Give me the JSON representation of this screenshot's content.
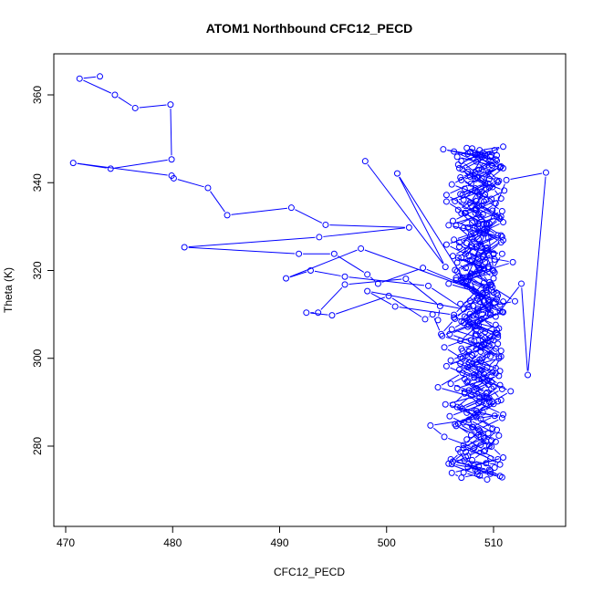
{
  "chart_data": {
    "type": "line",
    "title": "ATOM1 Northbound CFC12_PECD",
    "xlabel": "CFC12_PECD",
    "ylabel": "Theta (K)",
    "xlim": [
      468.5,
      816.5
    ],
    "ylim": [
      267.5,
      370.0
    ],
    "xticks": [
      470,
      480,
      490,
      500,
      510
    ],
    "yticks": [
      280,
      300,
      320,
      340,
      360
    ],
    "xtick_labels": [
      "470",
      "480",
      "490",
      "500",
      "510"
    ],
    "ytick_labels": [
      "280",
      "300",
      "320",
      "340",
      "360"
    ],
    "grid": false,
    "legend": "none",
    "series": [
      {
        "color": "#0000ff",
        "marker": "open-circle",
        "line": "solid",
        "x": [
          473.2,
          471.3,
          474.6,
          476.5,
          479.8,
          479.9,
          474.2,
          470.7,
          479.9,
          480.1,
          483.3,
          485.1,
          491.1,
          494.3,
          502.1,
          493.7,
          481.1,
          491.8,
          495.1,
          498.2,
          499.2,
          503.4,
          509.0,
          497.6,
          490.6,
          492.9,
          496.1,
          503.9,
          507.2,
          498.2,
          500.8,
          506.3,
          509.1,
          508.0,
          508.8,
          510.0,
          509.4,
          508.3,
          509.8,
          508.7,
          510.9,
          509.2,
          507.8,
          509.6,
          508.4,
          510.3,
          507.6,
          509.5,
          507.4,
          511.8,
          507.1,
          509.9,
          512.0,
          508.5,
          507.2,
          509.2,
          508.2,
          510.7,
          509.7,
          508.0,
          510.5,
          506.6,
          508.7,
          509.9,
          511.6,
          508.9,
          507.6,
          510.2,
          508.4,
          507.3,
          510.9,
          508.4,
          507.8,
          509.9,
          510.8,
          506.8,
          507.9,
          509.6,
          508.3,
          506.4,
          509.3,
          508.9,
          510.6,
          507.6,
          510.2,
          508.9,
          510.4,
          509.2,
          508.0,
          510.6,
          509.4,
          506.8,
          509.1,
          508.7,
          507.7,
          509.8,
          508.7,
          509.7,
          507.8,
          510.3,
          509.1,
          508.0,
          507.3,
          509.0,
          510.8,
          508.7,
          507.1,
          509.4,
          510.0,
          508.2,
          506.9,
          507.7,
          509.5,
          510.3,
          508.9,
          507.7,
          508.6,
          509.8,
          507.9,
          506.6,
          509.3,
          510.9,
          508.2,
          508.8,
          507.4,
          505.6,
          507.9,
          509.5,
          508.4,
          506.3,
          509.7,
          510.6,
          507.0,
          508.9,
          510.2,
          508.6,
          506.5,
          507.8,
          509.3,
          510.1,
          508.7,
          507.1,
          509.0,
          510.6,
          508.1,
          507.6,
          509.2,
          508.4,
          506.0,
          508.8,
          509.8,
          507.3,
          506.2,
          508.4,
          509.9,
          507.5,
          509.2,
          508.0,
          510.1,
          508.5,
          507.0,
          506.1,
          508.6,
          509.7,
          507.2,
          508.8,
          506.5,
          508.3,
          510.0,
          509.4,
          507.6,
          508.9,
          507.1,
          505.4,
          508.3,
          510.2,
          507.8,
          509.6,
          508.2,
          507.0,
          509.5,
          506.7,
          508.0,
          510.4,
          508.6,
          507.4,
          509.1,
          511.0,
          508.3,
          506.8,
          508.9,
          507.5,
          509.8,
          510.7,
          508.5,
          507.3,
          509.3,
          510.8,
          508.0,
          509.1,
          507.9,
          506.2,
          508.7,
          510.0,
          509.3,
          507.8,
          510.9,
          508.1,
          510.4,
          509.6,
          506.9,
          510.2,
          508.6,
          507.7,
          509.6,
          508.5,
          506.4,
          507.9,
          509.8,
          510.9,
          508.2,
          507.2,
          509.4,
          508.7,
          505.8,
          506.9,
          509.3,
          510.3,
          508.8,
          506.9,
          509.3,
          510.6,
          509.1,
          507.7,
          508.8,
          510.0,
          508.4,
          507.5,
          509.0,
          510.4,
          509.7,
          508.9,
          509.2,
          507.6,
          506.3,
          509.4,
          510.5,
          508.6,
          507.1,
          509.5,
          508.3,
          507.0,
          510.1,
          509.0,
          506.7,
          508.2,
          509.9,
          510.7,
          508.4,
          506.2,
          509.2,
          507.5,
          510.0,
          508.6,
          507.8,
          509.3,
          510.3,
          508.5,
          507.0,
          510.2,
          509.1,
          508.0,
          505.6,
          508.2,
          509.8,
          510.7,
          508.4,
          507.2,
          509.5,
          508.8,
          507.6,
          506.1,
          509.7,
          510.6,
          508.3,
          507.4,
          509.6,
          508.6,
          506.7,
          509.0,
          510.4,
          508.2,
          507.3,
          509.4,
          510.5,
          508.9,
          505.9,
          508.5,
          510.8,
          509.1,
          508.0,
          506.5,
          509.5,
          507.7,
          505.6,
          508.7,
          510.9,
          509.9,
          507.2,
          508.3,
          506.9,
          509.9,
          508.3,
          505.3,
          510.3,
          507.6,
          509.2,
          506.9,
          508.9,
          510.7,
          507.2,
          508.6,
          509.4,
          507.8,
          510.1,
          505.8,
          509.4,
          508.1,
          506.3,
          510.5,
          509.0,
          507.1,
          508.4,
          510.2,
          509.5,
          507.9,
          506.6,
          510.8,
          508.6,
          509.8,
          507.4,
          506.2,
          509.6,
          510.8,
          508.5,
          507.3,
          506.7,
          509.1,
          508.0,
          510.1,
          505.5,
          509.3,
          507.5,
          510.6,
          508.7,
          507.0,
          510.4,
          508.3,
          509.7,
          506.9,
          510.0,
          507.6,
          506.4,
          508.6,
          509.4,
          510.8,
          505.8,
          509.0,
          507.8,
          508.5,
          510.3,
          507.1,
          509.2,
          508.0,
          506.6,
          510.9,
          509.6,
          508.3,
          505.6,
          507.3,
          509.0,
          510.7,
          508.4,
          507.0,
          509.1,
          506.5,
          508.2,
          510.1,
          509.5,
          507.7,
          505.2,
          508.8,
          510.5,
          506.8,
          509.4,
          507.3,
          508.6,
          510.9,
          504.1,
          505.4,
          508.2,
          510.4,
          507.6,
          509.7,
          506.0,
          509.3,
          510.6,
          507.2,
          508.7,
          505.9,
          509.6,
          504.8,
          507.1,
          508.9,
          510.4,
          506.1,
          508.4,
          509.5,
          507.5,
          506.6,
          509.0,
          510.7,
          508.5,
          507.0,
          509.8,
          506.1,
          508.6,
          510.3,
          507.8,
          509.1,
          510.5,
          508.7,
          506.7,
          509.3,
          508.0,
          510.0,
          507.4,
          509.6,
          508.9,
          510.6,
          508.3,
          507.9,
          509.4,
          508.7,
          506.0,
          509.6,
          507.5,
          508.1,
          510.2,
          509.1,
          510.5,
          507.7,
          509.3,
          508.4,
          509.9,
          510.7,
          506.9,
          508.6,
          509.5,
          510.3
        ],
        "y": [
          364.2,
          363.7,
          360.0,
          357.0,
          357.8,
          345.3,
          343.2,
          344.5,
          341.6,
          341.0,
          338.8,
          332.6,
          334.3,
          330.4,
          329.8,
          327.6,
          325.3,
          323.8,
          323.8,
          319.1,
          317.0,
          320.6,
          314.9,
          325.0,
          318.2,
          320.0,
          318.6,
          316.5,
          311.2,
          315.3,
          311.8,
          309.9,
          317.2,
          322.2,
          325.9,
          319.9,
          330.5,
          334.0,
          344.1,
          347.4,
          348.2,
          346.5,
          341.4,
          338.9,
          335.8,
          332.2,
          329.8,
          327.4,
          323.8,
          321.9,
          318.4,
          316.2,
          313.0,
          311.3,
          308.1,
          306.0,
          303.9,
          301.7,
          300.4,
          298.7,
          296.0,
          293.2,
          291.0,
          290.1,
          292.5,
          295.4,
          298.0,
          302.2,
          305.4,
          309.5,
          312.9,
          315.0,
          318.2,
          320.1,
          323.8,
          325.4,
          328.3,
          330.7,
          333.1,
          335.8,
          338.5,
          341.0,
          343.6,
          346.6,
          345.3,
          343.0,
          340.1,
          337.3,
          334.6,
          331.8,
          329.3,
          326.4,
          323.6,
          320.2,
          317.9,
          315.5,
          312.9,
          310.4,
          308.2,
          305.7,
          303.1,
          300.7,
          298.3,
          295.6,
          293.0,
          290.2,
          288.5,
          290.9,
          293.6,
          296.2,
          298.8,
          301.5,
          304.0,
          306.5,
          309.0,
          311.7,
          314.3,
          316.8,
          319.3,
          321.8,
          324.4,
          326.9,
          329.6,
          332.2,
          334.7,
          337.2,
          339.8,
          342.4,
          344.8,
          347.1,
          346.0,
          343.4,
          340.6,
          338.0,
          335.3,
          332.7,
          330.2,
          327.6,
          325.1,
          322.5,
          320.0,
          317.4,
          314.8,
          312.2,
          309.7,
          307.2,
          304.6,
          302.1,
          299.5,
          297.0,
          294.6,
          292.0,
          289.4,
          286.6,
          284.0,
          281.5,
          279.0,
          276.8,
          275.1,
          273.6,
          272.8,
          273.9,
          275.4,
          277.2,
          279.5,
          282.1,
          284.6,
          287.1,
          289.6,
          292.2,
          294.8,
          297.3,
          299.9,
          302.5,
          305.1,
          307.6,
          310.1,
          312.7,
          315.3,
          317.8,
          320.4,
          322.9,
          325.5,
          328.0,
          330.6,
          333.1,
          335.7,
          338.2,
          340.8,
          343.3,
          345.8,
          347.9,
          346.2,
          343.7,
          341.1,
          338.6,
          336.0,
          333.5,
          330.9,
          328.4,
          325.8,
          323.3,
          320.7,
          318.2,
          315.6,
          313.1,
          310.5,
          308.0,
          305.4,
          302.9,
          300.3,
          297.8,
          295.2,
          292.7,
          290.1,
          287.6,
          285.0,
          282.5,
          279.9,
          277.4,
          275.5,
          274.0,
          272.4,
          273.3,
          276.0,
          278.6,
          281.1,
          283.7,
          286.2,
          288.8,
          291.3,
          293.9,
          296.4,
          299.0,
          301.5,
          304.1,
          306.6,
          309.2,
          311.7,
          314.3,
          316.8,
          319.4,
          321.9,
          324.5,
          327.0,
          329.6,
          332.1,
          334.7,
          337.2,
          339.8,
          342.3,
          344.9,
          347.4,
          346.8,
          344.1,
          341.5,
          339.0,
          336.4,
          333.9,
          331.3,
          328.8,
          326.2,
          323.7,
          321.1,
          318.6,
          316.0,
          313.5,
          310.9,
          308.4,
          305.8,
          303.3,
          300.7,
          298.2,
          295.6,
          293.1,
          290.5,
          288.0,
          285.4,
          282.9,
          280.3,
          277.8,
          275.9,
          274.4,
          273.2,
          274.7,
          277.5,
          280.0,
          282.6,
          285.1,
          287.7,
          290.2,
          292.8,
          295.3,
          297.9,
          300.4,
          303.0,
          305.5,
          308.1,
          310.6,
          313.2,
          315.7,
          318.3,
          320.8,
          323.4,
          325.9,
          328.5,
          331.0,
          333.6,
          336.1,
          338.7,
          341.2,
          343.8,
          346.3,
          347.6,
          345.0,
          342.5,
          339.9,
          337.4,
          334.8,
          332.3,
          329.7,
          327.2,
          324.6,
          322.1,
          319.5,
          317.0,
          314.4,
          311.9,
          309.3,
          306.8,
          304.2,
          301.7,
          299.1,
          296.6,
          294.0,
          291.5,
          288.9,
          286.4,
          283.8,
          281.3,
          278.7,
          276.5,
          274.6,
          272.9,
          274.2,
          276.7,
          279.3,
          281.8,
          284.4,
          286.9,
          289.5,
          292.0,
          294.6,
          297.1,
          299.7,
          302.2,
          304.8,
          307.3,
          309.9,
          312.4,
          315.0,
          317.5,
          320.1,
          322.6,
          325.2,
          327.7,
          330.3,
          332.8,
          335.4,
          337.9,
          340.5,
          343.0,
          345.6,
          347.8,
          345.9,
          343.3,
          340.8,
          338.2,
          335.7,
          333.1,
          330.6,
          328.0,
          325.5,
          322.9,
          320.4,
          317.8,
          315.3,
          312.7,
          310.2,
          307.6,
          305.1,
          302.5,
          300.0,
          297.4,
          294.9,
          292.3,
          289.8,
          287.2,
          284.7,
          282.1,
          279.6,
          277.0,
          275.2,
          273.7,
          277.0,
          276.1,
          275.8,
          280.2,
          283.5,
          286.8,
          290.1,
          293.4,
          296.7,
          300.0,
          303.3,
          306.6,
          309.9,
          313.2,
          316.5,
          319.8,
          323.1,
          326.4,
          329.7,
          333.0,
          336.3,
          339.6,
          342.9,
          346.2,
          347.0,
          343.7,
          340.4,
          337.1,
          333.8,
          330.5,
          327.2,
          323.9,
          320.6,
          317.3,
          314.0,
          310.7,
          307.4,
          304.1,
          300.8,
          297.5,
          294.2,
          290.9,
          287.6,
          284.3,
          281.0,
          278.8,
          282.4,
          286.0,
          289.6,
          293.2,
          296.8,
          300.4,
          304.0,
          307.6,
          311.2,
          314.8
        ]
      },
      {
        "color": "#0000ff",
        "marker": "open-circle",
        "line": "solid",
        "x": [
          498.0,
          505.5,
          501.0,
          507.4,
          511.2,
          514.9,
          513.2,
          512.6,
          510.2,
          508.5,
          506.4,
          505.1,
          504.3,
          503.6,
          500.2,
          494.9,
          492.5,
          493.6,
          496.1,
          501.8,
          505.0,
          504.8
        ],
        "y": [
          344.9,
          320.8,
          342.1,
          317.5,
          340.6,
          342.3,
          296.2,
          317.0,
          309.5,
          313.6,
          309.0,
          305.5,
          310.0,
          308.9,
          314.2,
          309.8,
          310.4,
          310.4,
          316.8,
          318.1,
          311.9,
          308.7
        ]
      }
    ]
  }
}
